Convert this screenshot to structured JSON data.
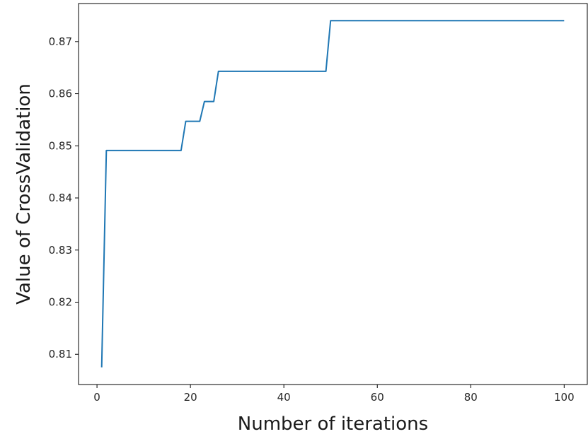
{
  "chart_data": {
    "type": "line",
    "title": "",
    "xlabel": "Number of iterations",
    "ylabel": "Value of CrossValidation",
    "xlim": [
      -3.95,
      104.95
    ],
    "ylim": [
      0.8042,
      0.8773
    ],
    "xticks": [
      0,
      20,
      40,
      60,
      80,
      100
    ],
    "yticks": [
      0.81,
      0.82,
      0.83,
      0.84,
      0.85,
      0.86,
      0.87
    ],
    "grid": false,
    "series": [
      {
        "color": "#1f77b4",
        "x": [
          1,
          2,
          18,
          19,
          22,
          23,
          25,
          26,
          49,
          50,
          100
        ],
        "y": [
          0.8075,
          0.8491,
          0.8491,
          0.8547,
          0.8547,
          0.8585,
          0.8585,
          0.8643,
          0.8643,
          0.874,
          0.874
        ]
      }
    ]
  }
}
